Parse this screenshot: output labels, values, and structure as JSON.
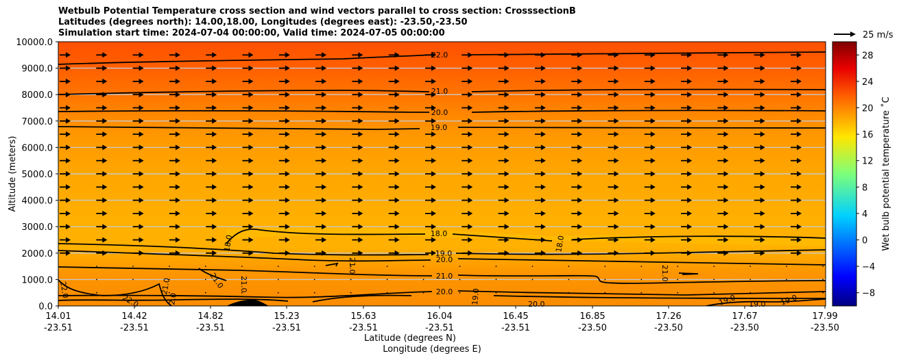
{
  "titles": {
    "line1": "Wetbulb Potential Temperature cross section and wind vectors parallel to cross section: CrosssectionB",
    "line2": "Latitudes (degrees north): 14.00,18.00, Longitudes (degrees east): -23.50,-23.50",
    "line3": "Simulation start time: 2024-07-04 00:00:00, Valid time: 2024-07-05 00:00:00"
  },
  "quiver_key_label": "25 m/s",
  "chart_data": {
    "type": "contour",
    "title": "Wetbulb Potential Temperature cross section and wind vectors parallel to cross section: CrosssectionB",
    "xlabel": "Latitude (degrees N)",
    "xlabel2": "Longitude (degrees E)",
    "ylabel": "Altitude (meters)",
    "ylim": [
      0,
      10000
    ],
    "yticks": [
      0,
      1000,
      2000,
      3000,
      4000,
      5000,
      6000,
      7000,
      8000,
      9000,
      10000
    ],
    "ytick_labels": [
      "0.0",
      "1000.0",
      "2000.0",
      "3000.0",
      "4000.0",
      "5000.0",
      "6000.0",
      "7000.0",
      "8000.0",
      "9000.0",
      "10000.0"
    ],
    "xticks_lat": [
      "14.01",
      "14.42",
      "14.82",
      "15.23",
      "15.63",
      "16.04",
      "16.45",
      "16.85",
      "17.26",
      "17.67",
      "17.99"
    ],
    "xticks_lon": [
      "-23.51",
      "-23.51",
      "-23.51",
      "-23.51",
      "-23.51",
      "-23.51",
      "-23.51",
      "-23.50",
      "-23.50",
      "-23.50",
      "-23.50"
    ],
    "colorbar": {
      "label": "Wet bulb potential temperature ˚C",
      "range": [
        -10,
        30
      ],
      "ticks": [
        -8,
        -4,
        0,
        4,
        8,
        12,
        16,
        20,
        24,
        28
      ],
      "tick_labels": [
        "−8",
        "−4",
        "0",
        "4",
        "8",
        "12",
        "16",
        "20",
        "24",
        "28"
      ]
    },
    "contour_levels": [
      {
        "value": 22.0,
        "altitude_m": 9200,
        "label": "22.0"
      },
      {
        "value": 21.0,
        "altitude_m": 8100,
        "label": "21.0"
      },
      {
        "value": 20.0,
        "altitude_m": 7350,
        "label": "20.0"
      },
      {
        "value": 19.0,
        "altitude_m": 6700,
        "label": "19.0"
      },
      {
        "value": 18.0,
        "altitude_m": 2600,
        "label": "18.0"
      },
      {
        "value": 19.0,
        "altitude_m": 2050,
        "label": "19.0"
      },
      {
        "value": 20.0,
        "altitude_m": 1750,
        "label": "20.0"
      },
      {
        "value": 21.0,
        "altitude_m": 1100,
        "label": "21.0"
      },
      {
        "value": 20.0,
        "altitude_m": 500,
        "label": "20.0"
      }
    ],
    "extra_contour_labels": [
      "22.0",
      "22.0",
      "21.0",
      "21.0",
      "21.0",
      "21.0",
      "19.0",
      "20.0",
      "19.0",
      "19.0",
      "19.0",
      "18.0",
      "18.0",
      "2.0"
    ],
    "wind": {
      "direction": "parallel, rightward",
      "reference_speed_ms": 25,
      "reference_label": "25 m/s"
    }
  }
}
